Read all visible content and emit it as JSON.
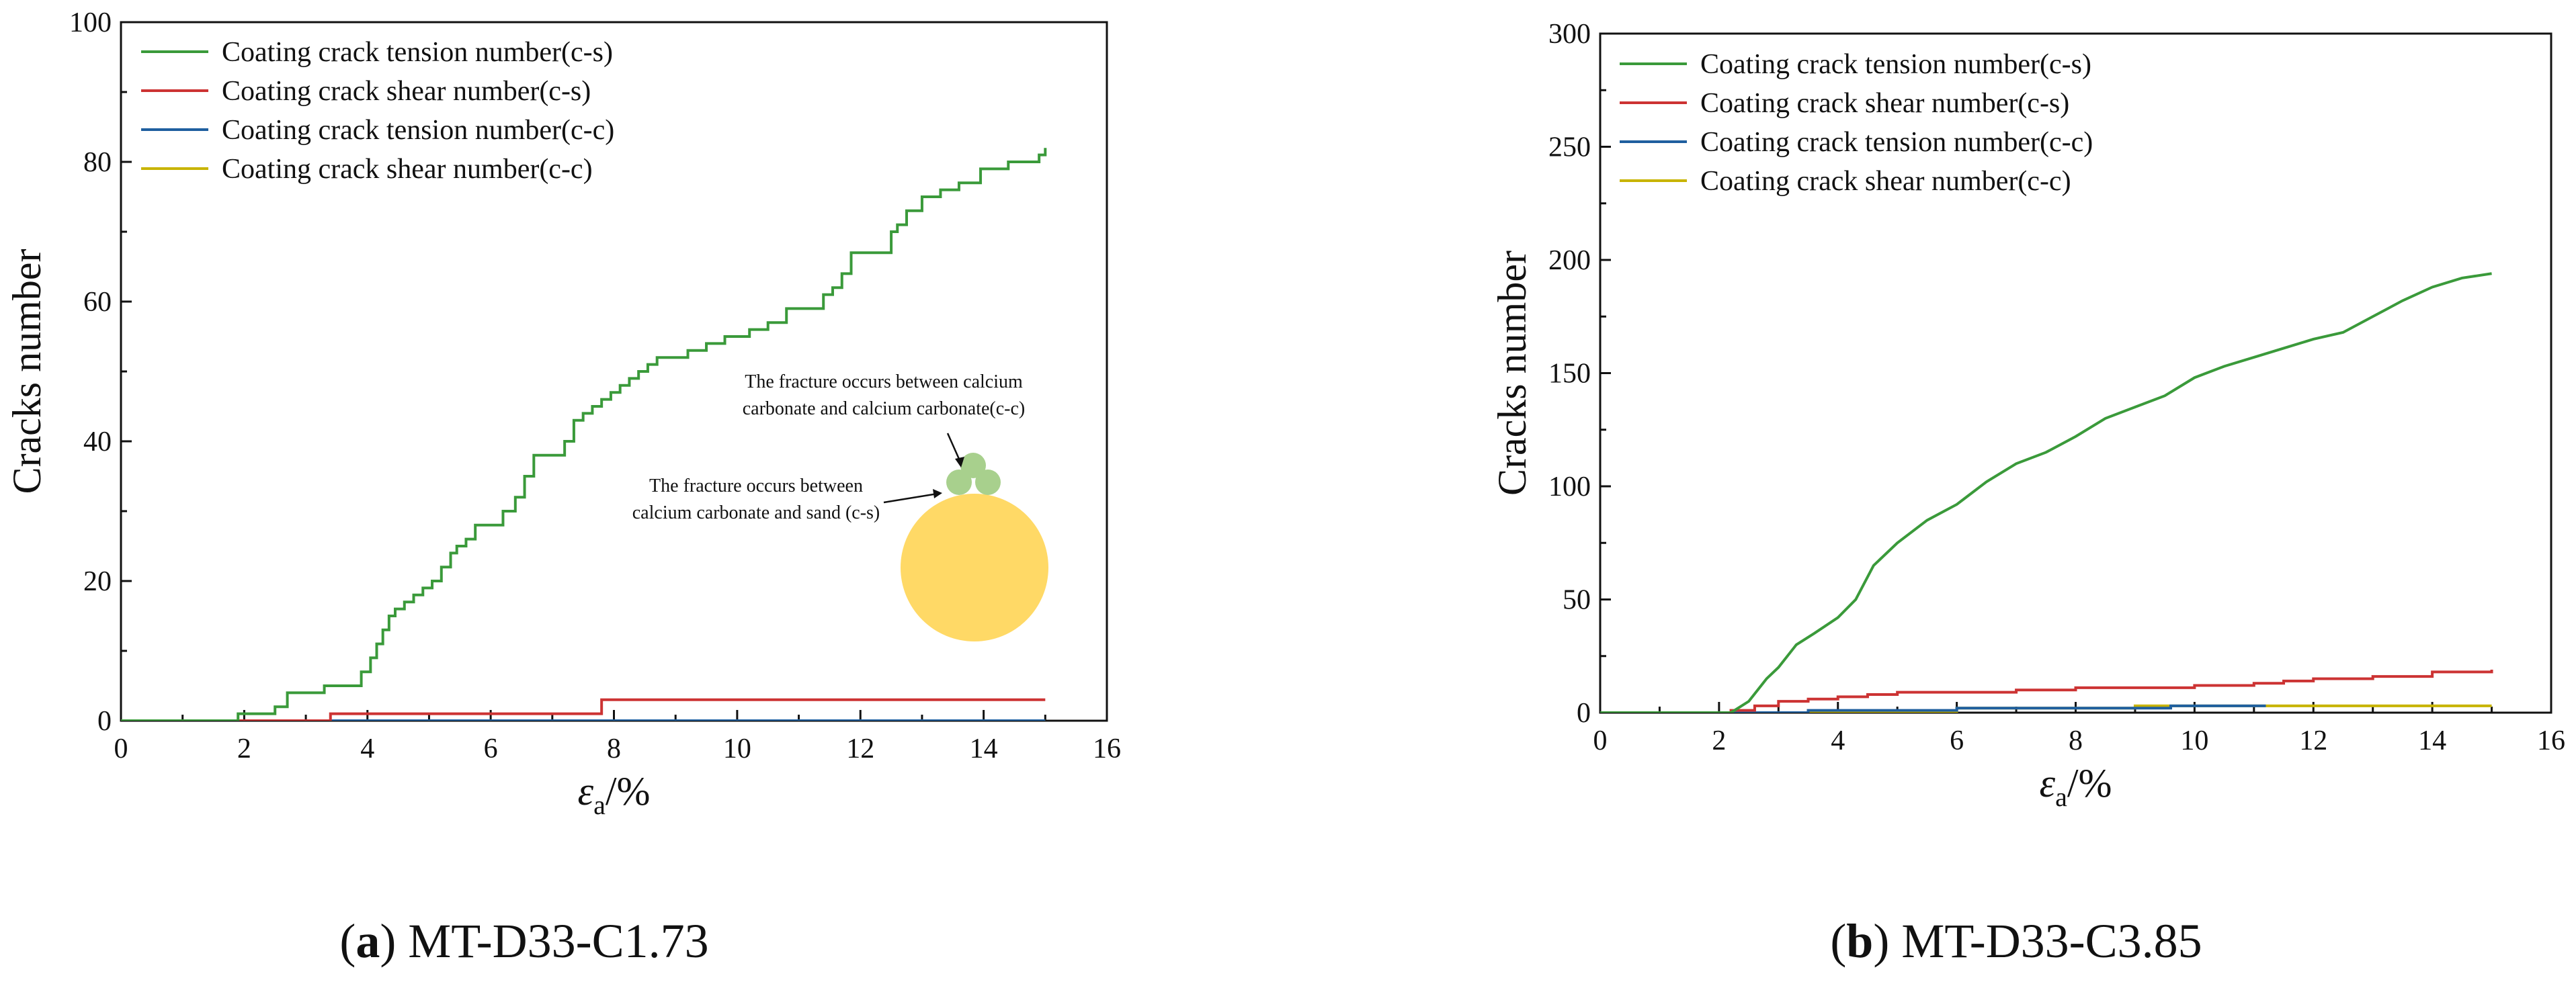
{
  "chart_data": [
    {
      "type": "line",
      "title": "",
      "caption_letter": "a",
      "caption_text": "MT-D33-C1.73",
      "xlabel_main": "ε",
      "xlabel_sub": "a",
      "xlabel_unit": "/%",
      "ylabel": "Cracks number",
      "xlim": [
        0,
        16
      ],
      "ylim": [
        0,
        100
      ],
      "xticks": [
        0,
        2,
        4,
        6,
        8,
        10,
        12,
        14,
        16
      ],
      "yticks": [
        0,
        20,
        40,
        60,
        80,
        100
      ],
      "legend_position": "top-left",
      "series": [
        {
          "name": "Coating crack tension number(c-s)",
          "color": "#3a9a3a",
          "step": true,
          "x": [
            0,
            1.9,
            2.5,
            2.7,
            3.3,
            3.9,
            4.05,
            4.15,
            4.25,
            4.35,
            4.45,
            4.6,
            4.75,
            4.9,
            5.05,
            5.2,
            5.35,
            5.45,
            5.6,
            5.75,
            6.2,
            6.4,
            6.55,
            6.7,
            7.2,
            7.35,
            7.5,
            7.65,
            7.8,
            7.95,
            8.1,
            8.25,
            8.4,
            8.55,
            8.7,
            9.2,
            9.5,
            9.8,
            10.2,
            10.5,
            10.8,
            11.4,
            11.55,
            11.7,
            11.85,
            12.5,
            12.6,
            12.75,
            13.0,
            13.3,
            13.6,
            13.95,
            14.4,
            14.9,
            15.0
          ],
          "y": [
            0,
            1,
            2,
            4,
            5,
            7,
            9,
            11,
            13,
            15,
            16,
            17,
            18,
            19,
            20,
            22,
            24,
            25,
            26,
            28,
            30,
            32,
            35,
            38,
            40,
            43,
            44,
            45,
            46,
            47,
            48,
            49,
            50,
            51,
            52,
            53,
            54,
            55,
            56,
            57,
            59,
            61,
            62,
            64,
            67,
            70,
            71,
            73,
            75,
            76,
            77,
            79,
            80,
            81,
            82
          ]
        },
        {
          "name": "Coating crack shear number(c-s)",
          "color": "#cc3333",
          "step": true,
          "x": [
            0,
            3.4,
            7.8,
            15.0
          ],
          "y": [
            0,
            1,
            3,
            3
          ]
        },
        {
          "name": "Coating crack tension number(c-c)",
          "color": "#1f5f9f",
          "step": true,
          "x": [
            0,
            15.0
          ],
          "y": [
            0,
            0
          ]
        },
        {
          "name": "Coating crack shear number(c-c)",
          "color": "#c8b400",
          "step": true,
          "x": [
            0,
            15.0
          ],
          "y": [
            0,
            0
          ]
        }
      ],
      "annotations": {
        "cc_text_line1": "The fracture occurs between calcium",
        "cc_text_line2": "carbonate and calcium carbonate(c-c)",
        "cs_text_line1": "The fracture occurs between",
        "cs_text_line2": "calcium carbonate and sand (c-s)",
        "sand_color": "#ffd966",
        "carbonate_color": "#a8d08d"
      }
    },
    {
      "type": "line",
      "title": "",
      "caption_letter": "b",
      "caption_text": "MT-D33-C3.85",
      "xlabel_main": "ε",
      "xlabel_sub": "a",
      "xlabel_unit": "/%",
      "ylabel": "Cracks number",
      "xlim": [
        0,
        16
      ],
      "ylim": [
        0,
        300
      ],
      "xticks": [
        0,
        2,
        4,
        6,
        8,
        10,
        12,
        14,
        16
      ],
      "yticks": [
        0,
        50,
        100,
        150,
        200,
        250,
        300
      ],
      "legend_position": "top-left",
      "series": [
        {
          "name": "Coating crack tension number(c-s)",
          "color": "#3a9a3a",
          "step": false,
          "x": [
            0,
            2.2,
            2.5,
            2.8,
            3.0,
            3.3,
            3.6,
            4.0,
            4.3,
            4.6,
            5.0,
            5.5,
            6.0,
            6.5,
            7.0,
            7.5,
            8.0,
            8.5,
            9.0,
            9.5,
            10.0,
            10.5,
            11.0,
            11.5,
            12.0,
            12.5,
            13.0,
            13.5,
            14.0,
            14.5,
            15.0
          ],
          "y": [
            0,
            0,
            5,
            15,
            20,
            30,
            35,
            42,
            50,
            65,
            75,
            85,
            92,
            102,
            110,
            115,
            122,
            130,
            135,
            140,
            148,
            153,
            157,
            161,
            165,
            168,
            175,
            182,
            188,
            192,
            194
          ]
        },
        {
          "name": "Coating crack shear number(c-s)",
          "color": "#cc3333",
          "step": true,
          "x": [
            0,
            2.2,
            2.6,
            3.0,
            3.5,
            4.0,
            4.5,
            5.0,
            6.0,
            7.0,
            8.0,
            9.0,
            10.0,
            11.0,
            11.5,
            12.0,
            13.0,
            14.0,
            15.0
          ],
          "y": [
            0,
            1,
            3,
            5,
            6,
            7,
            8,
            9,
            9,
            10,
            11,
            11,
            12,
            13,
            14,
            15,
            16,
            18,
            19
          ]
        },
        {
          "name": "Coating crack tension number(c-c)",
          "color": "#1f5f9f",
          "step": true,
          "x": [
            0,
            3.5,
            6.0,
            9.6,
            11.2
          ],
          "y": [
            0,
            1,
            2,
            3,
            3
          ]
        },
        {
          "name": "Coating crack shear number(c-c)",
          "color": "#c8b400",
          "step": true,
          "x": [
            0,
            6.0,
            9.0,
            15.0
          ],
          "y": [
            0,
            2,
            3,
            3
          ]
        }
      ]
    }
  ]
}
